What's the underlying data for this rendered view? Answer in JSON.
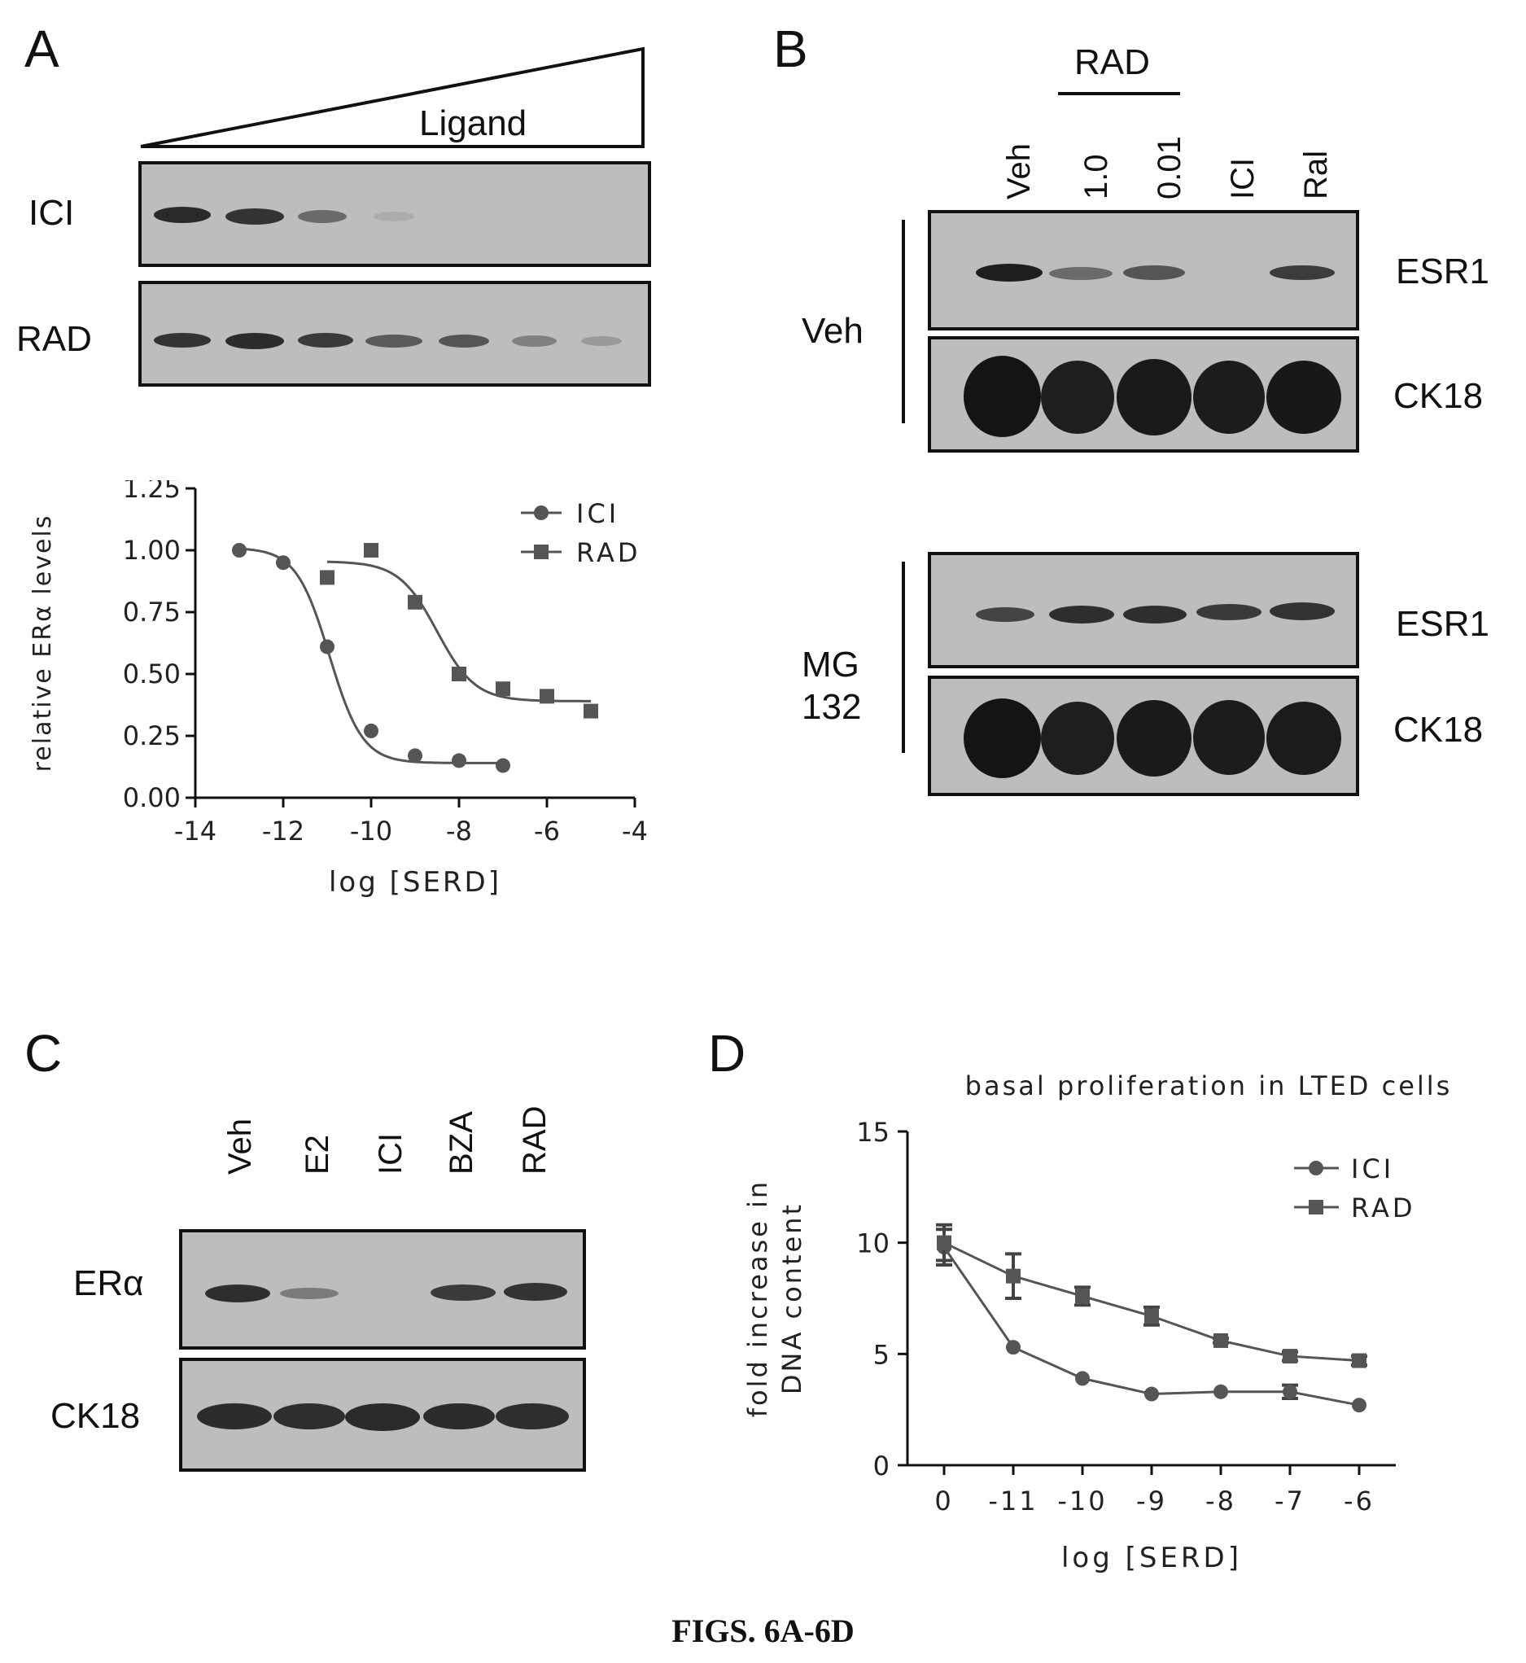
{
  "panels": {
    "A": {
      "letter": "A",
      "ligand_label": "Ligand",
      "blot_rows": [
        "ICI",
        "RAD"
      ]
    },
    "B": {
      "letter": "B",
      "group_label": "RAD",
      "lanes": [
        "Veh",
        "1.0",
        "0.01",
        "ICI",
        "Ral"
      ],
      "row_groups": [
        {
          "label_lines": [
            "Veh"
          ],
          "rows": [
            "ESR1",
            "CK18"
          ]
        },
        {
          "label_lines": [
            "MG",
            "132"
          ],
          "rows": [
            "ESR1",
            "CK18"
          ]
        }
      ]
    },
    "C": {
      "letter": "C",
      "lanes": [
        "Veh",
        "E2",
        "ICI",
        "BZA",
        "RAD"
      ],
      "rows": [
        "ERα",
        "CK18"
      ]
    },
    "D": {
      "letter": "D"
    }
  },
  "chart_data": [
    {
      "panel": "A",
      "type": "scatter",
      "title": "",
      "xlabel": "log [SERD]",
      "ylabel": "relative ERα levels",
      "xlim": [
        -14,
        -4
      ],
      "ylim": [
        0.0,
        1.25
      ],
      "xticks": [
        "-14",
        "-12",
        "-10",
        "-8",
        "-6",
        "-4"
      ],
      "yticks": [
        "0.00",
        "0.25",
        "0.50",
        "0.75",
        "1.00",
        "1.25"
      ],
      "legend_position": "top-right",
      "series": [
        {
          "name": "ICI",
          "marker": "circle",
          "x": [
            -13,
            -12,
            -11,
            -10,
            -9,
            -8,
            -7
          ],
          "y": [
            1.0,
            0.95,
            0.61,
            0.27,
            0.17,
            0.15,
            0.13
          ]
        },
        {
          "name": "RAD",
          "marker": "square",
          "x": [
            -11,
            -10,
            -9,
            -8,
            -7,
            -6,
            -5
          ],
          "y": [
            0.89,
            1.0,
            0.79,
            0.5,
            0.44,
            0.41,
            0.35
          ]
        }
      ]
    },
    {
      "panel": "D",
      "type": "line",
      "title": "basal proliferation in LTED cells",
      "xlabel": "log [SERD]",
      "ylabel": "fold increase in DNA content",
      "categories": [
        "0",
        "-11",
        "-10",
        "-9",
        "-8",
        "-7",
        "-6"
      ],
      "ylim": [
        0,
        15
      ],
      "yticks": [
        "0",
        "5",
        "10",
        "15"
      ],
      "legend_position": "top-right",
      "series": [
        {
          "name": "ICI",
          "marker": "circle",
          "values": [
            9.8,
            5.3,
            3.9,
            3.2,
            3.3,
            3.3,
            2.7
          ],
          "errors": [
            0.8,
            0,
            0,
            0,
            0,
            0.3,
            0
          ]
        },
        {
          "name": "RAD",
          "marker": "square",
          "values": [
            10.0,
            8.5,
            7.6,
            6.7,
            5.6,
            4.9,
            4.7
          ],
          "errors": [
            0.8,
            1.0,
            0.4,
            0.4,
            0.1,
            0.2,
            0.2
          ]
        }
      ]
    }
  ],
  "caption": "FIGS. 6A-6D"
}
